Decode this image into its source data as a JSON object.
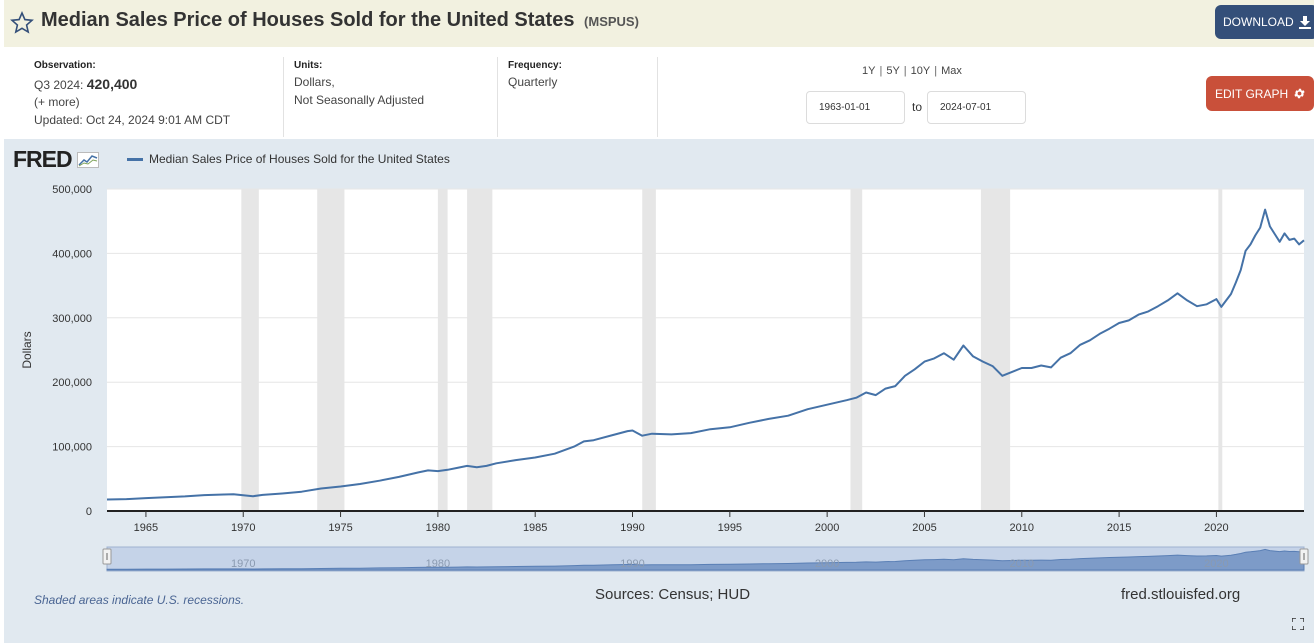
{
  "header": {
    "title": "Median Sales Price of Houses Sold for the United States",
    "series_id": "(MSPUS)",
    "download_label": "DOWNLOAD"
  },
  "meta": {
    "observation_label": "Observation:",
    "observation_period": "Q3 2024:",
    "observation_value": "420,400",
    "more": "(+ more)",
    "updated": "Updated: Oct 24, 2024 9:01 AM CDT",
    "units_label": "Units:",
    "units_line1": "Dollars,",
    "units_line2": "Not Seasonally Adjusted",
    "frequency_label": "Frequency:",
    "frequency_value": "Quarterly"
  },
  "controls": {
    "range_1y": "1Y",
    "range_5y": "5Y",
    "range_10y": "10Y",
    "range_max": "Max",
    "range_sep": "|",
    "start_date": "1963-01-01",
    "to_label": "to",
    "end_date": "2024-07-01",
    "edit_label": "EDIT GRAPH"
  },
  "footer": {
    "recession_note": "Shaded areas indicate U.S. recessions.",
    "sources": "Sources: Census; HUD",
    "site": "fred.stlouisfed.org"
  },
  "logo_text": "FRED",
  "colors": {
    "series": "#4572a7",
    "title_bar": "#f2f1e0",
    "download_button": "#344f79",
    "edit_button": "#c9503a",
    "panel": "#e1e9f0",
    "recession": "#e6e6e6"
  },
  "chart_data": {
    "type": "line",
    "ylabel": "Dollars",
    "xlim": [
      1963.0,
      2024.5
    ],
    "ylim": [
      0,
      500000
    ],
    "yticks": [
      0,
      100000,
      200000,
      300000,
      400000,
      500000
    ],
    "ytick_labels": [
      "0",
      "100,000",
      "200,000",
      "300,000",
      "400,000",
      "500,000"
    ],
    "xticks": [
      1965,
      1970,
      1975,
      1980,
      1985,
      1990,
      1995,
      2000,
      2005,
      2010,
      2015,
      2020
    ],
    "navigator_ticks": [
      1970,
      1980,
      1990,
      2000,
      2010,
      2020
    ],
    "grid": true,
    "legend": "top-left",
    "recessions": [
      [
        1969.9,
        1970.8
      ],
      [
        1973.8,
        1975.2
      ],
      [
        1980.0,
        1980.5
      ],
      [
        1981.5,
        1982.8
      ],
      [
        1990.5,
        1991.2
      ],
      [
        2001.2,
        2001.8
      ],
      [
        2007.9,
        2009.4
      ],
      [
        2020.1,
        2020.3
      ]
    ],
    "series": [
      {
        "name": "Median Sales Price of Houses Sold for the United States",
        "points": [
          [
            1963.0,
            17800
          ],
          [
            1964.0,
            18500
          ],
          [
            1965.0,
            20000
          ],
          [
            1966.0,
            21400
          ],
          [
            1967.0,
            22700
          ],
          [
            1968.0,
            24700
          ],
          [
            1969.0,
            25600
          ],
          [
            1969.5,
            26000
          ],
          [
            1970.0,
            24500
          ],
          [
            1970.5,
            23000
          ],
          [
            1971.0,
            25000
          ],
          [
            1972.0,
            27200
          ],
          [
            1973.0,
            30000
          ],
          [
            1974.0,
            35000
          ],
          [
            1975.0,
            38000
          ],
          [
            1976.0,
            42000
          ],
          [
            1977.0,
            47000
          ],
          [
            1978.0,
            53000
          ],
          [
            1979.0,
            60000
          ],
          [
            1979.5,
            63000
          ],
          [
            1980.0,
            62000
          ],
          [
            1980.5,
            64000
          ],
          [
            1981.0,
            67000
          ],
          [
            1981.5,
            70000
          ],
          [
            1982.0,
            68000
          ],
          [
            1982.5,
            70000
          ],
          [
            1983.0,
            74000
          ],
          [
            1984.0,
            79000
          ],
          [
            1985.0,
            83000
          ],
          [
            1986.0,
            89000
          ],
          [
            1987.0,
            100000
          ],
          [
            1987.5,
            108000
          ],
          [
            1988.0,
            110000
          ],
          [
            1989.0,
            118000
          ],
          [
            1989.75,
            124000
          ],
          [
            1990.0,
            125000
          ],
          [
            1990.5,
            117000
          ],
          [
            1991.0,
            120000
          ],
          [
            1992.0,
            119000
          ],
          [
            1993.0,
            121000
          ],
          [
            1994.0,
            127000
          ],
          [
            1995.0,
            130000
          ],
          [
            1996.0,
            137000
          ],
          [
            1997.0,
            143000
          ],
          [
            1998.0,
            148000
          ],
          [
            1999.0,
            158000
          ],
          [
            2000.0,
            165000
          ],
          [
            2001.0,
            172000
          ],
          [
            2001.5,
            176000
          ],
          [
            2002.0,
            184000
          ],
          [
            2002.5,
            180000
          ],
          [
            2003.0,
            190000
          ],
          [
            2003.5,
            194000
          ],
          [
            2004.0,
            210000
          ],
          [
            2004.5,
            220000
          ],
          [
            2005.0,
            232000
          ],
          [
            2005.5,
            237000
          ],
          [
            2006.0,
            245000
          ],
          [
            2006.5,
            235000
          ],
          [
            2007.0,
            257000
          ],
          [
            2007.5,
            240000
          ],
          [
            2008.0,
            232000
          ],
          [
            2008.5,
            225000
          ],
          [
            2009.0,
            210000
          ],
          [
            2009.5,
            216000
          ],
          [
            2010.0,
            222000
          ],
          [
            2010.5,
            222000
          ],
          [
            2011.0,
            226000
          ],
          [
            2011.5,
            223000
          ],
          [
            2012.0,
            238000
          ],
          [
            2012.5,
            245000
          ],
          [
            2013.0,
            258000
          ],
          [
            2013.5,
            265000
          ],
          [
            2014.0,
            275000
          ],
          [
            2014.5,
            283000
          ],
          [
            2015.0,
            292000
          ],
          [
            2015.5,
            296000
          ],
          [
            2016.0,
            305000
          ],
          [
            2016.5,
            310000
          ],
          [
            2017.0,
            318000
          ],
          [
            2017.5,
            327000
          ],
          [
            2018.0,
            338000
          ],
          [
            2018.5,
            327000
          ],
          [
            2019.0,
            318000
          ],
          [
            2019.5,
            321000
          ],
          [
            2020.0,
            329000
          ],
          [
            2020.25,
            317000
          ],
          [
            2020.75,
            337000
          ],
          [
            2021.0,
            355000
          ],
          [
            2021.25,
            374000
          ],
          [
            2021.5,
            404000
          ],
          [
            2021.75,
            414000
          ],
          [
            2022.0,
            428000
          ],
          [
            2022.25,
            440000
          ],
          [
            2022.5,
            468000
          ],
          [
            2022.75,
            442000
          ],
          [
            2023.0,
            430000
          ],
          [
            2023.25,
            418000
          ],
          [
            2023.5,
            431000
          ],
          [
            2023.75,
            421000
          ],
          [
            2024.0,
            423000
          ],
          [
            2024.25,
            414000
          ],
          [
            2024.5,
            420400
          ]
        ]
      }
    ]
  }
}
